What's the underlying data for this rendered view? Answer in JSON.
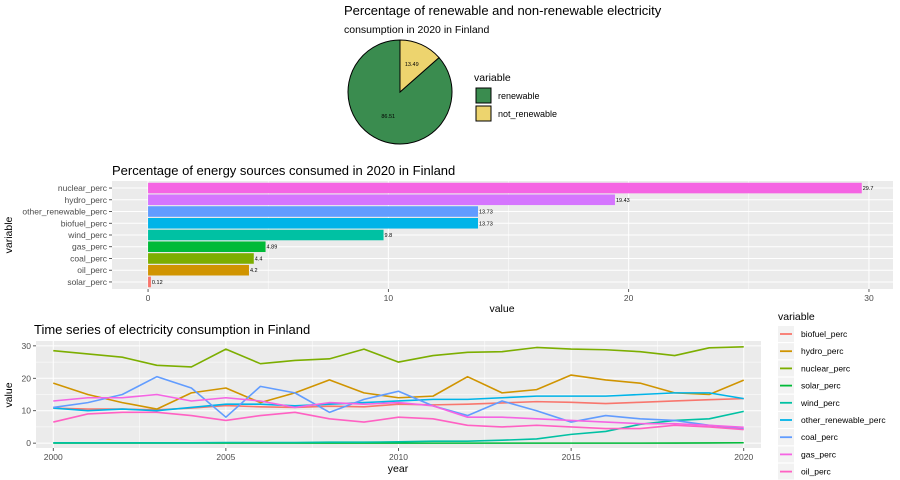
{
  "pie": {
    "title_line1": "Percentage of renewable and non-renewable electricity",
    "title_line2": "consumption in 2020 in Finland",
    "legend_title": "variable",
    "colors": [
      "#3a8c4f",
      "#edd46e"
    ],
    "chart_data": {
      "type": "pie",
      "categories": [
        "renewable",
        "not_renewable"
      ],
      "values": [
        86.51,
        13.49
      ],
      "labels": [
        "86.51",
        "13.49"
      ]
    }
  },
  "bar": {
    "title": "Percentage of energy sources consumed in 2020 in Finland",
    "chart_data": {
      "type": "bar",
      "orientation": "horizontal",
      "categories": [
        "nuclear_perc",
        "hydro_perc",
        "other_renewable_perc",
        "biofuel_perc",
        "wind_perc",
        "gas_perc",
        "coal_perc",
        "oil_perc",
        "solar_perc"
      ],
      "values": [
        29.7,
        19.43,
        13.73,
        13.73,
        9.8,
        4.89,
        4.4,
        4.2,
        0.12
      ],
      "labels": [
        "29.7",
        "19.43",
        "13.73",
        "13.73",
        "9.8",
        "4.89",
        "4.4",
        "4.2",
        "0.12"
      ],
      "colors": [
        "#f564e3",
        "#d575fe",
        "#619cff",
        "#00b4e8",
        "#00c1a3",
        "#00ba38",
        "#7cae00",
        "#d09400",
        "#f8766d"
      ],
      "xlabel": "value",
      "ylabel": "variable",
      "xlim": [
        -1.5,
        31
      ],
      "xticks": [
        0,
        10,
        20,
        30
      ]
    }
  },
  "line": {
    "title": "Time series of electricity consumption in Finland",
    "legend_title": "variable",
    "chart_data": {
      "type": "line",
      "x": [
        2000,
        2001,
        2002,
        2003,
        2004,
        2005,
        2006,
        2007,
        2008,
        2009,
        2010,
        2011,
        2012,
        2013,
        2014,
        2015,
        2016,
        2017,
        2018,
        2019,
        2020
      ],
      "xlabel": "year",
      "ylabel": "value",
      "xlim": [
        1999.5,
        2020.5
      ],
      "ylim": [
        -1.5,
        31.5
      ],
      "xticks": [
        2000,
        2005,
        2010,
        2015,
        2020
      ],
      "yticks": [
        0,
        10,
        20,
        30
      ],
      "series": [
        {
          "name": "biofuel_perc",
          "color": "#f8766d",
          "values": [
            10.8,
            10.5,
            10.5,
            10.3,
            10.8,
            11.6,
            11.2,
            11.0,
            11.4,
            11.2,
            12.0,
            11.8,
            12.0,
            12.4,
            12.8,
            12.6,
            12.2,
            12.6,
            13.0,
            13.4,
            13.73
          ]
        },
        {
          "name": "hydro_perc",
          "color": "#d09400",
          "values": [
            18.5,
            15.0,
            12.5,
            10.5,
            15.5,
            17.0,
            12.5,
            15.5,
            19.5,
            15.5,
            14.0,
            14.5,
            20.5,
            15.5,
            16.5,
            21.0,
            19.5,
            18.5,
            15.5,
            15.0,
            19.43
          ]
        },
        {
          "name": "nuclear_perc",
          "color": "#7cae00",
          "values": [
            28.5,
            27.5,
            26.5,
            24.0,
            23.5,
            29.0,
            24.5,
            25.5,
            26.0,
            29.0,
            25.0,
            27.0,
            28.0,
            28.2,
            29.5,
            29.0,
            28.8,
            28.2,
            27.0,
            29.4,
            29.7
          ]
        },
        {
          "name": "solar_perc",
          "color": "#00ba38",
          "values": [
            0,
            0,
            0,
            0,
            0,
            0,
            0,
            0,
            0,
            0,
            0,
            0,
            0,
            0,
            0,
            0,
            0,
            0,
            0.02,
            0.05,
            0.12
          ]
        },
        {
          "name": "wind_perc",
          "color": "#00c1a3",
          "values": [
            0.1,
            0.1,
            0.1,
            0.1,
            0.1,
            0.2,
            0.2,
            0.2,
            0.3,
            0.3,
            0.4,
            0.6,
            0.6,
            0.9,
            1.3,
            2.7,
            3.6,
            5.8,
            7.0,
            7.5,
            9.8
          ]
        },
        {
          "name": "other_renewable_perc",
          "color": "#00b4e8",
          "values": [
            10.8,
            10.0,
            10.5,
            10.0,
            11.0,
            12.0,
            12.0,
            11.5,
            12.0,
            12.5,
            13.0,
            13.5,
            13.5,
            14.0,
            14.5,
            14.5,
            14.5,
            15.0,
            15.5,
            15.5,
            13.73
          ]
        },
        {
          "name": "coal_perc",
          "color": "#619cff",
          "values": [
            11.0,
            12.5,
            15.0,
            20.5,
            17.0,
            8.0,
            17.5,
            15.5,
            9.5,
            13.5,
            16.0,
            11.5,
            8.5,
            13.0,
            10.0,
            6.5,
            8.5,
            7.5,
            7.0,
            5.5,
            4.4
          ]
        },
        {
          "name": "gas_perc",
          "color": "#f564e3",
          "values": [
            13.0,
            14.0,
            14.0,
            15.0,
            13.0,
            14.0,
            13.0,
            11.0,
            12.5,
            12.0,
            12.5,
            11.5,
            8.0,
            8.0,
            7.5,
            7.0,
            6.5,
            6.0,
            6.0,
            5.5,
            4.89
          ]
        },
        {
          "name": "oil_perc",
          "color": "#ff61c3",
          "values": [
            6.5,
            9.0,
            9.5,
            9.5,
            8.5,
            7.0,
            8.5,
            9.5,
            7.5,
            6.5,
            8.0,
            7.5,
            5.5,
            5.0,
            5.5,
            5.0,
            4.5,
            4.5,
            5.5,
            5.0,
            4.2
          ]
        }
      ]
    }
  }
}
